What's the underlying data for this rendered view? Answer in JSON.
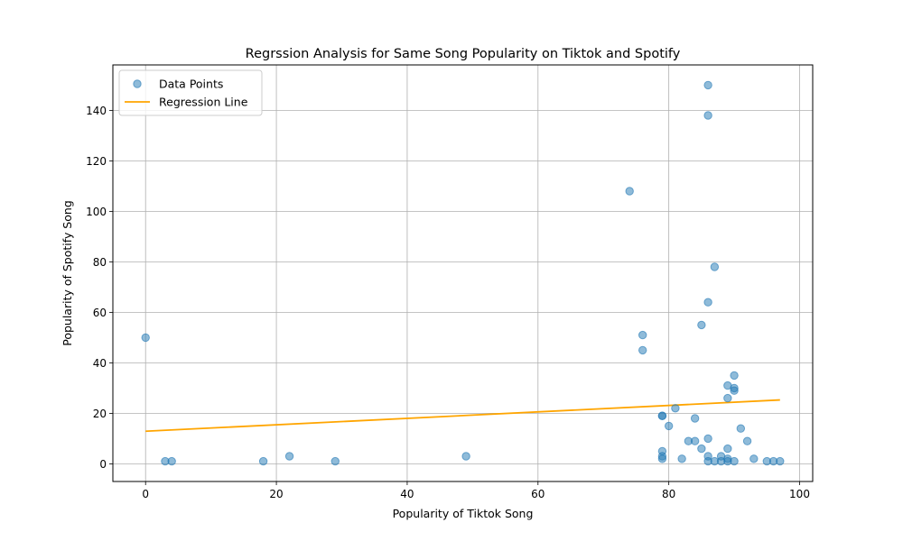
{
  "chart_data": {
    "type": "scatter",
    "title": "Regrssion Analysis for Same Song Popularity on Tiktok and Spotify",
    "xlabel": "Popularity of Tiktok Song",
    "ylabel": "Popularity of Spotify Song",
    "xlim": [
      -5,
      102
    ],
    "ylim": [
      -7,
      158
    ],
    "xticks": [
      0,
      20,
      40,
      60,
      80,
      100
    ],
    "yticks": [
      0,
      20,
      40,
      60,
      80,
      100,
      120,
      140
    ],
    "grid": true,
    "legend_position": "upper-left",
    "series": [
      {
        "name": "Data Points",
        "kind": "scatter",
        "color": "#1f77b4",
        "points": [
          [
            0,
            50
          ],
          [
            3,
            1
          ],
          [
            4,
            1
          ],
          [
            18,
            1
          ],
          [
            22,
            3
          ],
          [
            29,
            1
          ],
          [
            49,
            3
          ],
          [
            74,
            108
          ],
          [
            76,
            51
          ],
          [
            76,
            45
          ],
          [
            79,
            19
          ],
          [
            79,
            19
          ],
          [
            79,
            5
          ],
          [
            79,
            3
          ],
          [
            79,
            2
          ],
          [
            80,
            15
          ],
          [
            81,
            22
          ],
          [
            82,
            2
          ],
          [
            83,
            9
          ],
          [
            84,
            9
          ],
          [
            84,
            18
          ],
          [
            85,
            55
          ],
          [
            85,
            6
          ],
          [
            86,
            150
          ],
          [
            86,
            138
          ],
          [
            86,
            64
          ],
          [
            86,
            10
          ],
          [
            86,
            3
          ],
          [
            86,
            1
          ],
          [
            87,
            78
          ],
          [
            87,
            1
          ],
          [
            88,
            3
          ],
          [
            88,
            1
          ],
          [
            89,
            31
          ],
          [
            89,
            26
          ],
          [
            89,
            6
          ],
          [
            89,
            2
          ],
          [
            89,
            1
          ],
          [
            90,
            35
          ],
          [
            90,
            30
          ],
          [
            90,
            29
          ],
          [
            90,
            1
          ],
          [
            91,
            14
          ],
          [
            92,
            9
          ],
          [
            93,
            2
          ],
          [
            95,
            1
          ],
          [
            96,
            1
          ],
          [
            97,
            1
          ]
        ]
      },
      {
        "name": "Regression Line",
        "kind": "line",
        "color": "#ffa500",
        "points": [
          [
            0,
            12.9
          ],
          [
            97,
            25.3
          ]
        ]
      }
    ]
  }
}
